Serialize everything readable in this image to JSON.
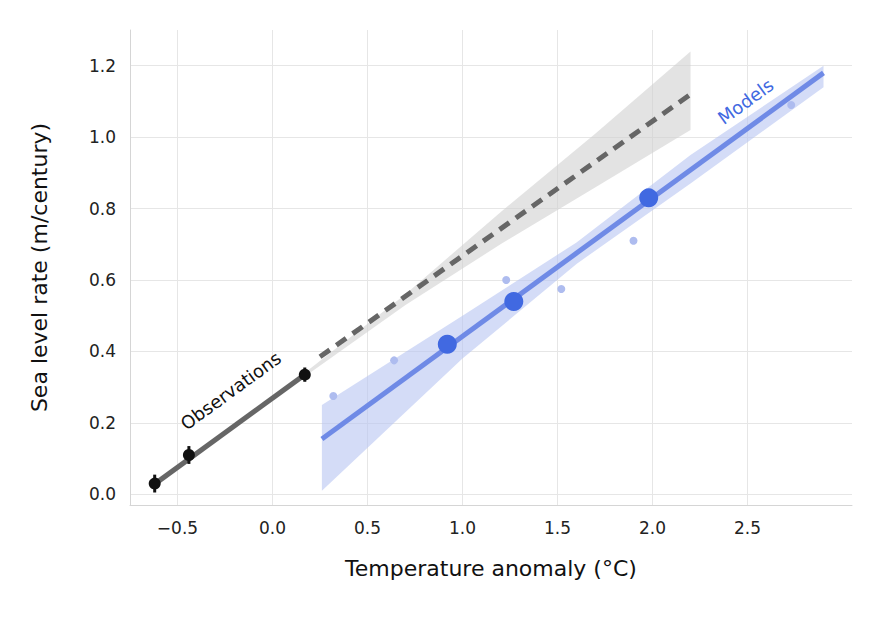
{
  "chart_data": {
    "type": "scatter",
    "x_label": "Temperature anomaly (°C)",
    "y_label": "Sea level rate (m/century)",
    "xlim": [
      -0.75,
      3.05
    ],
    "ylim": [
      -0.03,
      1.3
    ],
    "xticks": [
      {
        "value": -0.5,
        "label": "−0.5"
      },
      {
        "value": 0,
        "label": "0.0"
      },
      0.5,
      {
        "value": 1,
        "label": "1.0"
      },
      1.5,
      {
        "value": 2,
        "label": "2.0"
      },
      2.5
    ],
    "yticks": [
      {
        "value": 0,
        "label": "0.0"
      },
      0.2,
      0.4,
      0.6,
      0.8,
      {
        "value": 1,
        "label": "1.0"
      },
      1.2
    ],
    "grid": true,
    "series": [
      {
        "type": "band",
        "color": "#d0d0d0",
        "x": [
          0.17,
          0.7,
          1.2,
          1.7,
          2.2
        ],
        "lower": [
          0.33,
          0.53,
          0.7,
          0.86,
          1.02
        ],
        "upper": [
          0.34,
          0.56,
          0.79,
          1.01,
          1.24
        ]
      },
      {
        "type": "band",
        "color": "#b7c4f2",
        "x": [
          0.26,
          1.0,
          1.6,
          2.2,
          2.9
        ],
        "lower": [
          0.01,
          0.38,
          0.645,
          0.87,
          1.14
        ],
        "upper": [
          0.25,
          0.5,
          0.705,
          0.95,
          1.2
        ]
      },
      {
        "type": "line",
        "line_style": "solid",
        "color": "#666666",
        "x": [
          -0.63,
          0.17
        ],
        "values": [
          0.025,
          0.335
        ]
      },
      {
        "type": "line",
        "line_style": "dashed",
        "color": "#666666",
        "x": [
          0.25,
          2.2
        ],
        "values": [
          0.385,
          1.12
        ]
      },
      {
        "type": "line",
        "line_style": "solid",
        "color": "#6f8ae6",
        "x": [
          0.26,
          2.9
        ],
        "values": [
          0.155,
          1.18
        ]
      },
      {
        "type": "scatter",
        "marker": "small_circle",
        "color": "#aebcef",
        "x": [
          0.32,
          0.64,
          1.23,
          1.52,
          1.9,
          2.73
        ],
        "values": [
          0.275,
          0.375,
          0.6,
          0.575,
          0.71,
          1.09
        ]
      },
      {
        "type": "scatter",
        "marker": "circle",
        "color": "#4169e1",
        "x": [
          0.92,
          1.27,
          1.98
        ],
        "values": [
          0.42,
          0.54,
          0.83
        ]
      },
      {
        "type": "scatter",
        "marker": "dot",
        "color": "#111111",
        "x": [
          -0.62,
          -0.44,
          0.17
        ],
        "values": [
          0.03,
          0.11,
          0.335
        ],
        "error": [
          0.025,
          0.025,
          0.02
        ]
      }
    ],
    "annotations": [
      {
        "text": "Observations",
        "x": -0.22,
        "y": 0.29,
        "color": "#111111"
      },
      {
        "text": "Models",
        "x": 2.49,
        "y": 1.1,
        "color": "#4169e1"
      }
    ]
  }
}
